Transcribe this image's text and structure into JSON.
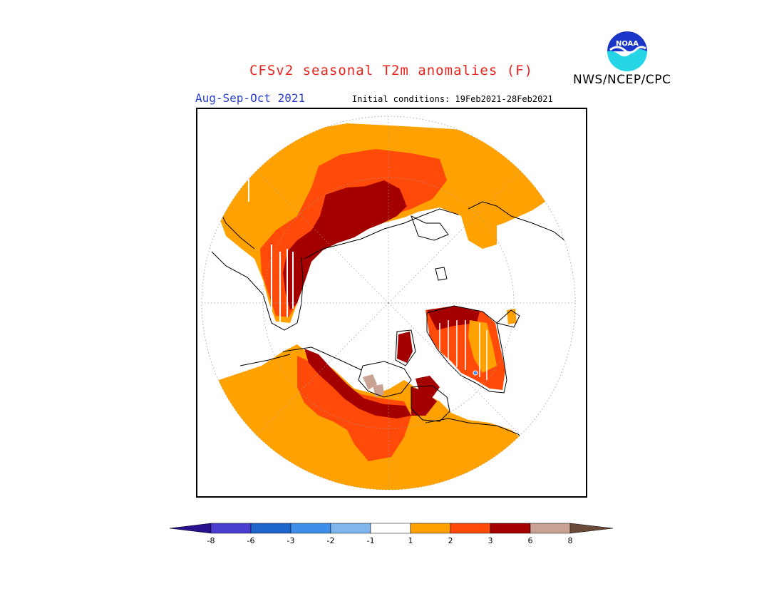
{
  "header": {
    "title": "CFSv2 seasonal T2m anomalies (F)",
    "agency": "NWS/NCEP/CPC",
    "season": "Aug-Sep-Oct 2021",
    "initial_conditions": "Initial conditions: 19Feb2021-28Feb2021",
    "logo_text": "NOAA"
  },
  "legend": {
    "tick_labels": [
      "-8",
      "-6",
      "-3",
      "-2",
      "-1",
      "1",
      "2",
      "3",
      "6",
      "8"
    ],
    "colors": {
      "below_-8": "#2a0f8f",
      "-8_to_-6": "#4a3fcf",
      "-6_to_-3": "#1f66cc",
      "-3_to_-2": "#3f8fe8",
      "-2_to_-1": "#7fb6ee",
      "-1_to_1": "#ffffff",
      "1_to_2": "#ffa100",
      "2_to_3": "#ff4a0a",
      "3_to_6": "#a50000",
      "6_to_8": "#c9a293",
      "above_8": "#6b4a3a"
    }
  },
  "map": {
    "projection": "north polar stereographic",
    "colors": {
      "ocean_bg": "#ffffff",
      "anomaly_1_2": "#ffa100",
      "anomaly_2_3": "#ff4a0a",
      "anomaly_3_6": "#a50000",
      "anomaly_6_8": "#c9a293",
      "coastline": "#000000",
      "grid": "#999999"
    }
  }
}
